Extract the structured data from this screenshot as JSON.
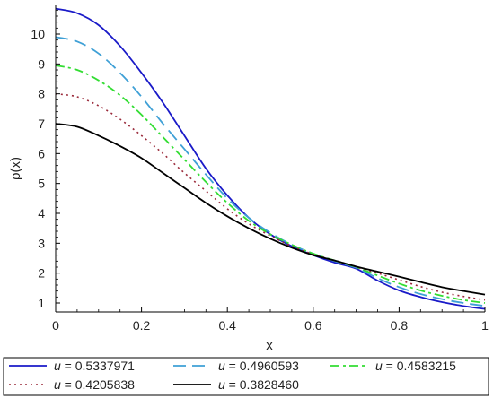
{
  "chart_data": {
    "type": "line",
    "xlabel": "x",
    "ylabel": "ρ(x)",
    "xlim": [
      0,
      1
    ],
    "ylim": [
      0.7,
      10.9
    ],
    "xticks": [
      "0",
      "0.2",
      "0.4",
      "0.6",
      "0.8",
      "1"
    ],
    "yticks": [
      "1",
      "2",
      "3",
      "4",
      "5",
      "6",
      "7",
      "8",
      "9",
      "10"
    ],
    "grid": false,
    "legend_position": "bottom",
    "x": [
      0,
      0.05,
      0.1,
      0.15,
      0.2,
      0.25,
      0.3,
      0.35,
      0.4,
      0.45,
      0.5,
      0.55,
      0.6,
      0.65,
      0.7,
      0.75,
      0.8,
      0.85,
      0.9,
      0.95,
      1.0
    ],
    "series": [
      {
        "name": "u = 0.5337971",
        "legend_var": "u",
        "legend_value": " = 0.5337971",
        "color": "#1a1ac8",
        "dash": "solid",
        "values": [
          10.85,
          10.7,
          10.3,
          9.6,
          8.7,
          7.7,
          6.6,
          5.5,
          4.6,
          3.85,
          3.3,
          2.9,
          2.6,
          2.35,
          2.15,
          1.75,
          1.42,
          1.2,
          1.03,
          0.9,
          0.8
        ]
      },
      {
        "name": "u = 0.4960593",
        "legend_var": "u",
        "legend_value": " = 0.4960593",
        "color": "#3fa0d6",
        "dash": "longdash",
        "values": [
          9.9,
          9.75,
          9.35,
          8.7,
          7.9,
          7.0,
          6.15,
          5.3,
          4.5,
          3.85,
          3.35,
          2.95,
          2.65,
          2.4,
          2.18,
          1.83,
          1.53,
          1.3,
          1.13,
          1.0,
          0.9
        ]
      },
      {
        "name": "u = 0.4583215",
        "legend_var": "u",
        "legend_value": " = 0.4583215",
        "color": "#33dd33",
        "dash": "dashdot",
        "values": [
          8.95,
          8.8,
          8.45,
          7.95,
          7.3,
          6.55,
          5.8,
          5.05,
          4.35,
          3.75,
          3.3,
          2.95,
          2.65,
          2.42,
          2.2,
          1.92,
          1.65,
          1.42,
          1.24,
          1.1,
          1.0
        ]
      },
      {
        "name": "u = 0.4205838",
        "legend_var": "u",
        "legend_value": " = 0.4205838",
        "color": "#9a2a3a",
        "dash": "dotted",
        "values": [
          8.0,
          7.9,
          7.6,
          7.15,
          6.6,
          6.0,
          5.35,
          4.75,
          4.15,
          3.65,
          3.25,
          2.9,
          2.63,
          2.42,
          2.21,
          2.0,
          1.77,
          1.55,
          1.36,
          1.22,
          1.1
        ]
      },
      {
        "name": "u = 0.3828460",
        "legend_var": "u",
        "legend_value": " = 0.3828460",
        "color": "#000000",
        "dash": "solid",
        "values": [
          7.0,
          6.9,
          6.6,
          6.25,
          5.85,
          5.35,
          4.85,
          4.35,
          3.9,
          3.5,
          3.15,
          2.85,
          2.6,
          2.42,
          2.22,
          2.05,
          1.88,
          1.7,
          1.53,
          1.4,
          1.28
        ]
      }
    ]
  }
}
